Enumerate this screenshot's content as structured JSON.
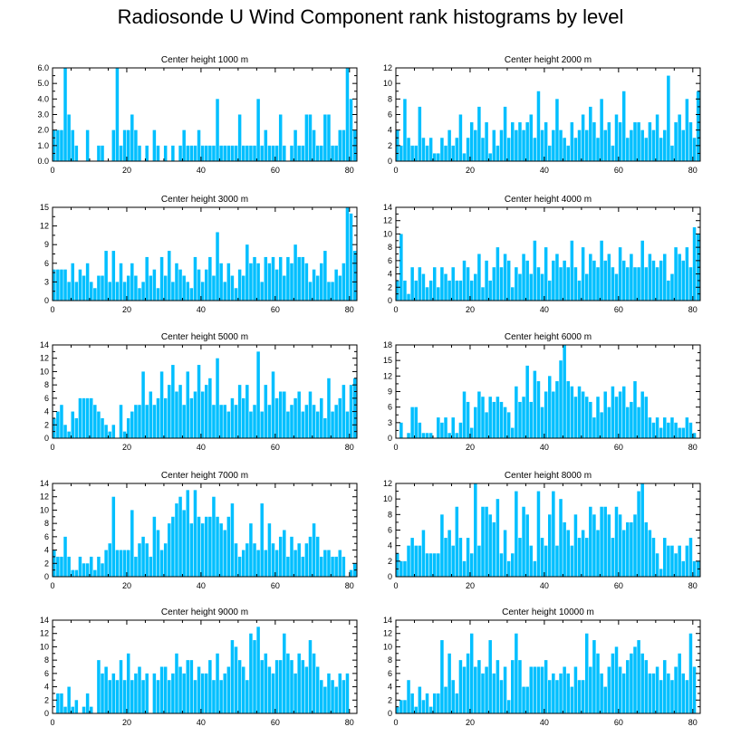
{
  "title": "Radiosonde U Wind Component rank histograms by level",
  "colors": {
    "bar": "#00bfff",
    "bar_edge": "#ffffff",
    "axis": "#000000"
  },
  "chart_data": [
    {
      "type": "bar",
      "title": "Center height 1000 m",
      "xlabel": "",
      "ylabel": "",
      "xlim": [
        0,
        82
      ],
      "ylim": [
        0,
        6
      ],
      "xticks": [
        0,
        20,
        40,
        60,
        80
      ],
      "xtick_labels": [
        "0",
        "20",
        "40",
        "60",
        "80"
      ],
      "yticks": [
        0,
        1,
        2,
        3,
        4,
        5,
        6
      ],
      "ytick_labels": [
        "0.0",
        "1.0",
        "2.0",
        "3.0",
        "4.0",
        "5.0",
        "6.0"
      ],
      "values": [
        2,
        2,
        2,
        6,
        3,
        2,
        1,
        0,
        0,
        2,
        0,
        0,
        1,
        1,
        0,
        0,
        2,
        6,
        1,
        2,
        2,
        3,
        2,
        1,
        0,
        1,
        0,
        2,
        1,
        0,
        1,
        0,
        1,
        0,
        1,
        2,
        1,
        1,
        1,
        2,
        1,
        1,
        1,
        1,
        4,
        1,
        1,
        1,
        1,
        1,
        3,
        1,
        1,
        1,
        1,
        4,
        1,
        2,
        1,
        1,
        1,
        3,
        1,
        0,
        1,
        2,
        1,
        1,
        3,
        3,
        2,
        1,
        1,
        3,
        3,
        1,
        1,
        2,
        2,
        6,
        4,
        2
      ]
    },
    {
      "type": "bar",
      "title": "Center height 2000 m",
      "xlabel": "",
      "ylabel": "",
      "xlim": [
        0,
        82
      ],
      "ylim": [
        0,
        12
      ],
      "xticks": [
        0,
        20,
        40,
        60,
        80
      ],
      "xtick_labels": [
        "0",
        "20",
        "40",
        "60",
        "80"
      ],
      "yticks": [
        0,
        2,
        4,
        6,
        8,
        10,
        12
      ],
      "ytick_labels": [
        "0",
        "2",
        "4",
        "6",
        "8",
        "10",
        "12"
      ],
      "values": [
        4,
        2,
        8,
        3,
        2,
        2,
        7,
        3,
        2,
        3,
        1,
        1,
        3,
        2,
        4,
        2,
        3,
        6,
        1,
        3,
        5,
        4,
        7,
        3,
        5,
        1,
        4,
        2,
        4,
        7,
        3,
        5,
        4,
        5,
        4,
        5,
        6,
        3,
        9,
        4,
        5,
        2,
        4,
        8,
        4,
        3,
        2,
        5,
        3,
        4,
        6,
        4,
        7,
        5,
        3,
        8,
        4,
        5,
        2,
        6,
        5,
        9,
        3,
        4,
        5,
        5,
        4,
        3,
        5,
        4,
        6,
        3,
        4,
        11,
        2,
        5,
        6,
        4,
        8,
        5,
        3,
        9
      ]
    },
    {
      "type": "bar",
      "title": "Center height 3000 m",
      "xlabel": "",
      "ylabel": "",
      "xlim": [
        0,
        82
      ],
      "ylim": [
        0,
        15
      ],
      "xticks": [
        0,
        20,
        40,
        60,
        80
      ],
      "xtick_labels": [
        "0",
        "20",
        "40",
        "60",
        "80"
      ],
      "yticks": [
        0,
        3,
        6,
        9,
        12,
        15
      ],
      "ytick_labels": [
        "0",
        "3",
        "6",
        "9",
        "12",
        "15"
      ],
      "values": [
        5,
        5,
        5,
        5,
        3,
        6,
        3,
        5,
        4,
        6,
        3,
        2,
        4,
        4,
        8,
        3,
        8,
        3,
        6,
        3,
        4,
        6,
        4,
        2,
        3,
        7,
        4,
        5,
        2,
        7,
        4,
        8,
        3,
        6,
        5,
        4,
        3,
        2,
        7,
        5,
        3,
        5,
        7,
        4,
        11,
        6,
        3,
        6,
        4,
        2,
        5,
        4,
        9,
        6,
        7,
        6,
        3,
        7,
        6,
        7,
        5,
        7,
        4,
        7,
        6,
        9,
        7,
        7,
        6,
        3,
        5,
        4,
        6,
        8,
        3,
        3,
        5,
        4,
        6,
        15,
        14,
        8
      ]
    },
    {
      "type": "bar",
      "title": "Center height 4000 m",
      "xlabel": "",
      "ylabel": "",
      "xlim": [
        0,
        82
      ],
      "ylim": [
        0,
        14
      ],
      "xticks": [
        0,
        20,
        40,
        60,
        80
      ],
      "xtick_labels": [
        "0",
        "20",
        "40",
        "60",
        "80"
      ],
      "yticks": [
        0,
        2,
        4,
        6,
        8,
        10,
        12,
        14
      ],
      "ytick_labels": [
        "0",
        "2",
        "4",
        "6",
        "8",
        "10",
        "12",
        "14"
      ],
      "values": [
        3,
        10,
        3,
        1,
        5,
        3,
        5,
        4,
        2,
        3,
        5,
        2,
        5,
        4,
        3,
        5,
        3,
        3,
        6,
        5,
        3,
        4,
        7,
        2,
        6,
        3,
        5,
        8,
        5,
        7,
        6,
        2,
        5,
        4,
        7,
        6,
        4,
        9,
        5,
        4,
        8,
        3,
        6,
        7,
        5,
        6,
        5,
        9,
        5,
        3,
        8,
        4,
        7,
        6,
        5,
        9,
        6,
        7,
        5,
        4,
        8,
        6,
        5,
        7,
        5,
        5,
        9,
        5,
        7,
        6,
        5,
        6,
        7,
        3,
        4,
        8,
        7,
        6,
        8,
        5,
        11,
        10
      ]
    },
    {
      "type": "bar",
      "title": "Center height 5000 m",
      "xlabel": "",
      "ylabel": "",
      "xlim": [
        0,
        82
      ],
      "ylim": [
        0,
        14
      ],
      "xticks": [
        0,
        20,
        40,
        60,
        80
      ],
      "xtick_labels": [
        "0",
        "20",
        "40",
        "60",
        "80"
      ],
      "yticks": [
        0,
        2,
        4,
        6,
        8,
        10,
        12,
        14
      ],
      "ytick_labels": [
        "0",
        "2",
        "4",
        "6",
        "8",
        "10",
        "12",
        "14"
      ],
      "values": [
        3,
        4,
        5,
        2,
        1,
        4,
        3,
        6,
        6,
        6,
        6,
        5,
        4,
        3,
        2,
        1,
        2,
        0,
        5,
        1,
        3,
        4,
        5,
        5,
        10,
        5,
        7,
        5,
        6,
        10,
        6,
        8,
        11,
        7,
        8,
        5,
        10,
        6,
        7,
        11,
        7,
        8,
        9,
        5,
        12,
        5,
        5,
        4,
        6,
        5,
        8,
        6,
        8,
        4,
        5,
        13,
        4,
        8,
        5,
        10,
        6,
        7,
        7,
        4,
        5,
        6,
        7,
        4,
        5,
        7,
        5,
        4,
        6,
        3,
        9,
        4,
        5,
        6,
        8,
        4,
        8,
        9
      ]
    },
    {
      "type": "bar",
      "title": "Center height 6000 m",
      "xlabel": "",
      "ylabel": "",
      "xlim": [
        0,
        82
      ],
      "ylim": [
        0,
        18
      ],
      "xticks": [
        0,
        20,
        40,
        60,
        80
      ],
      "xtick_labels": [
        "0",
        "20",
        "40",
        "60",
        "80"
      ],
      "yticks": [
        0,
        3,
        6,
        9,
        12,
        15,
        18
      ],
      "ytick_labels": [
        "0",
        "3",
        "6",
        "9",
        "12",
        "15",
        "18"
      ],
      "values": [
        0,
        3,
        0,
        1,
        6,
        6,
        3,
        1,
        1,
        1,
        0,
        4,
        3,
        4,
        1,
        4,
        1,
        3,
        9,
        7,
        2,
        6,
        9,
        8,
        5,
        8,
        7,
        8,
        7,
        6,
        5,
        2,
        10,
        7,
        8,
        14,
        7,
        13,
        11,
        6,
        9,
        12,
        9,
        11,
        15,
        18,
        11,
        10,
        8,
        10,
        9,
        8,
        7,
        4,
        8,
        5,
        9,
        6,
        10,
        8,
        9,
        10,
        6,
        7,
        11,
        6,
        9,
        8,
        4,
        3,
        4,
        2,
        4,
        3,
        4,
        3,
        2,
        2,
        4,
        3,
        1,
        0
      ]
    },
    {
      "type": "bar",
      "title": "Center height 7000 m",
      "xlabel": "",
      "ylabel": "",
      "xlim": [
        0,
        82
      ],
      "ylim": [
        0,
        14
      ],
      "xticks": [
        0,
        20,
        40,
        60,
        80
      ],
      "xtick_labels": [
        "0",
        "20",
        "40",
        "60",
        "80"
      ],
      "yticks": [
        0,
        2,
        4,
        6,
        8,
        10,
        12,
        14
      ],
      "ytick_labels": [
        "0",
        "2",
        "4",
        "6",
        "8",
        "10",
        "12",
        "14"
      ],
      "values": [
        4,
        3,
        3,
        6,
        3,
        1,
        1,
        3,
        2,
        2,
        3,
        1,
        3,
        2,
        4,
        5,
        12,
        4,
        4,
        4,
        4,
        10,
        3,
        5,
        6,
        5,
        3,
        9,
        7,
        4,
        5,
        8,
        9,
        11,
        12,
        10,
        13,
        8,
        13,
        9,
        8,
        9,
        9,
        12,
        9,
        8,
        7,
        9,
        11,
        5,
        3,
        4,
        5,
        8,
        5,
        4,
        11,
        4,
        8,
        5,
        4,
        6,
        7,
        3,
        6,
        4,
        5,
        3,
        5,
        6,
        8,
        6,
        3,
        4,
        4,
        3,
        3,
        4,
        3,
        0,
        1,
        2
      ]
    },
    {
      "type": "bar",
      "title": "Center height 8000 m",
      "xlabel": "",
      "ylabel": "",
      "xlim": [
        0,
        82
      ],
      "ylim": [
        0,
        12
      ],
      "xticks": [
        0,
        20,
        40,
        60,
        80
      ],
      "xtick_labels": [
        "0",
        "20",
        "40",
        "60",
        "80"
      ],
      "yticks": [
        0,
        2,
        4,
        6,
        8,
        10,
        12
      ],
      "ytick_labels": [
        "0",
        "2",
        "4",
        "6",
        "8",
        "10",
        "12"
      ],
      "values": [
        3,
        2,
        2,
        4,
        5,
        4,
        4,
        6,
        3,
        3,
        3,
        3,
        8,
        5,
        6,
        4,
        9,
        5,
        2,
        5,
        3,
        12,
        4,
        9,
        9,
        8,
        7,
        10,
        3,
        6,
        2,
        3,
        11,
        5,
        9,
        8,
        4,
        2,
        11,
        5,
        4,
        8,
        11,
        4,
        10,
        7,
        6,
        4,
        8,
        5,
        6,
        5,
        9,
        8,
        6,
        9,
        9,
        8,
        5,
        9,
        8,
        6,
        7,
        7,
        8,
        11,
        12,
        7,
        6,
        5,
        3,
        1,
        5,
        4,
        4,
        3,
        4,
        2,
        4,
        5,
        2,
        2
      ]
    },
    {
      "type": "bar",
      "title": "Center height 9000 m",
      "xlabel": "",
      "ylabel": "",
      "xlim": [
        0,
        82
      ],
      "ylim": [
        0,
        14
      ],
      "xticks": [
        0,
        20,
        40,
        60,
        80
      ],
      "xtick_labels": [
        "0",
        "20",
        "40",
        "60",
        "80"
      ],
      "yticks": [
        0,
        2,
        4,
        6,
        8,
        10,
        12,
        14
      ],
      "ytick_labels": [
        "0",
        "2",
        "4",
        "6",
        "8",
        "10",
        "12",
        "14"
      ],
      "values": [
        0,
        3,
        3,
        1,
        4,
        1,
        2,
        0,
        1,
        3,
        1,
        0,
        8,
        6,
        7,
        5,
        6,
        5,
        8,
        5,
        9,
        5,
        6,
        7,
        5,
        6,
        0,
        6,
        5,
        7,
        7,
        5,
        6,
        9,
        7,
        6,
        8,
        8,
        5,
        7,
        6,
        6,
        8,
        5,
        9,
        5,
        6,
        7,
        11,
        10,
        8,
        7,
        5,
        12,
        11,
        13,
        8,
        9,
        7,
        6,
        8,
        8,
        12,
        9,
        8,
        6,
        9,
        8,
        7,
        11,
        9,
        7,
        5,
        4,
        6,
        5,
        4,
        6,
        5,
        6,
        0,
        0
      ]
    },
    {
      "type": "bar",
      "title": "Center height 10000 m",
      "xlabel": "",
      "ylabel": "",
      "xlim": [
        0,
        82
      ],
      "ylim": [
        0,
        14
      ],
      "xticks": [
        0,
        20,
        40,
        60,
        80
      ],
      "xtick_labels": [
        "0",
        "20",
        "40",
        "60",
        "80"
      ],
      "yticks": [
        0,
        2,
        4,
        6,
        8,
        10,
        12,
        14
      ],
      "ytick_labels": [
        "0",
        "2",
        "4",
        "6",
        "8",
        "10",
        "12",
        "14"
      ],
      "values": [
        1,
        2,
        2,
        5,
        3,
        1,
        4,
        2,
        3,
        1,
        3,
        3,
        11,
        4,
        9,
        5,
        3,
        8,
        7,
        9,
        12,
        7,
        8,
        6,
        7,
        11,
        6,
        8,
        5,
        7,
        2,
        8,
        12,
        8,
        4,
        4,
        7,
        7,
        7,
        7,
        8,
        5,
        6,
        5,
        6,
        7,
        6,
        4,
        7,
        5,
        5,
        12,
        7,
        11,
        9,
        6,
        4,
        7,
        9,
        10,
        7,
        6,
        8,
        9,
        10,
        11,
        9,
        8,
        6,
        6,
        7,
        5,
        8,
        6,
        5,
        7,
        9,
        6,
        5,
        12,
        7,
        0
      ]
    }
  ]
}
